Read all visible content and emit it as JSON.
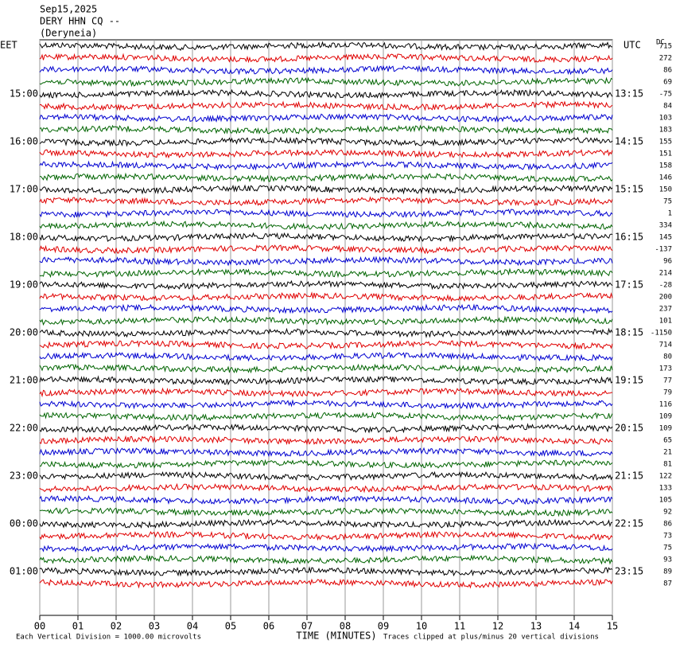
{
  "header": {
    "date": "Sep15,2025",
    "station": "DERY HHN CQ --",
    "location": "(Deryneia)"
  },
  "chart_data": {
    "type": "helicorder",
    "x_label": "TIME (MINUTES)",
    "xlim": [
      0,
      15
    ],
    "xticks": [
      {
        "value": 0,
        "label": "00"
      },
      {
        "value": 1,
        "label": "01"
      },
      {
        "value": 2,
        "label": "02"
      },
      {
        "value": 3,
        "label": "03"
      },
      {
        "value": 4,
        "label": "04"
      },
      {
        "value": 5,
        "label": "05"
      },
      {
        "value": 6,
        "label": "06"
      },
      {
        "value": 7,
        "label": "07"
      },
      {
        "value": 8,
        "label": "08"
      },
      {
        "value": 9,
        "label": "09"
      },
      {
        "value": 10,
        "label": "10"
      },
      {
        "value": 11,
        "label": "11"
      },
      {
        "value": 12,
        "label": "12"
      },
      {
        "value": 13,
        "label": "13"
      },
      {
        "value": 14,
        "label": "14"
      },
      {
        "value": 15,
        "label": "15"
      }
    ],
    "left_axis_label": "EET",
    "right_axis_label": "UTC",
    "offset_label": "DC",
    "colors": [
      "#000000",
      "#e00000",
      "#0000d0",
      "#006400"
    ],
    "left_times": [
      null,
      null,
      null,
      null,
      "15:00",
      null,
      null,
      null,
      "16:00",
      null,
      null,
      null,
      "17:00",
      null,
      null,
      null,
      "18:00",
      null,
      null,
      null,
      "19:00",
      null,
      null,
      null,
      "20:00",
      null,
      null,
      null,
      "21:00",
      null,
      null,
      null,
      "22:00",
      null,
      null,
      null,
      "23:00",
      null,
      null,
      null,
      "00:00",
      null,
      null,
      null,
      "01:00",
      null
    ],
    "right_times": [
      null,
      null,
      null,
      null,
      "13:15",
      null,
      null,
      null,
      "14:15",
      null,
      null,
      null,
      "15:15",
      null,
      null,
      null,
      "16:15",
      null,
      null,
      null,
      "17:15",
      null,
      null,
      null,
      "18:15",
      null,
      null,
      null,
      "19:15",
      null,
      null,
      null,
      "20:15",
      null,
      null,
      null,
      "21:15",
      null,
      null,
      null,
      "22:15",
      null,
      null,
      null,
      "23:15",
      null
    ],
    "offsets": [
      715,
      272,
      86,
      69,
      -75,
      84,
      103,
      183,
      155,
      151,
      158,
      146,
      150,
      75,
      1,
      334,
      145,
      -137,
      96,
      214,
      -28,
      200,
      237,
      101,
      -1150,
      714,
      80,
      173,
      77,
      79,
      116,
      109,
      109,
      65,
      21,
      81,
      122,
      133,
      105,
      92,
      86,
      73,
      75,
      93,
      89,
      87
    ]
  },
  "footer": {
    "scale_note": "Each Vertical Division = 1000.00 microvolts",
    "clip_note": "Traces clipped at plus/minus 20 vertical divisions"
  }
}
